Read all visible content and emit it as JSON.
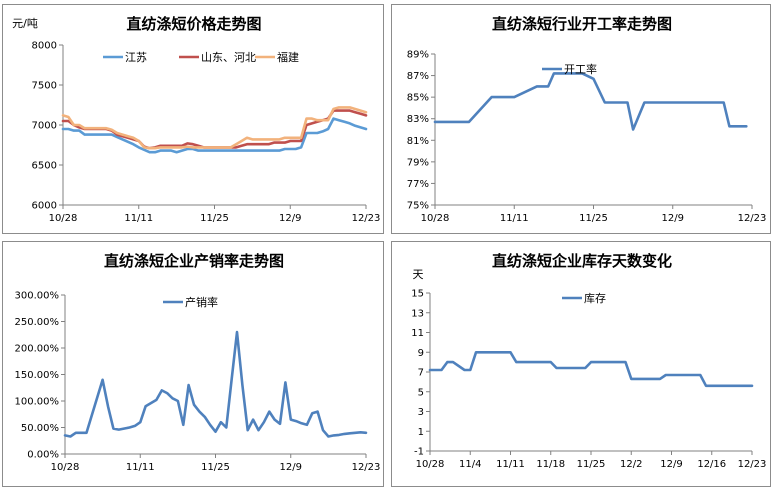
{
  "charts": [
    {
      "id": "p1",
      "type": "line",
      "title": "直纺涤短价格走势图",
      "ylabel": "元/吨",
      "ylim": [
        6000,
        8000
      ],
      "yticks": [
        "6000",
        "6500",
        "7000",
        "7500",
        "8000"
      ],
      "xlabels": [
        "10/28",
        "11/11",
        "11/25",
        "12/9",
        "12/23"
      ],
      "xmax": 56,
      "legend": [
        "江苏",
        "山东、河北",
        "福建"
      ],
      "series": [
        {
          "name": "江苏",
          "color": "#5b9bd5",
          "x": [
            0,
            1,
            2,
            3,
            4,
            5,
            6,
            7,
            8,
            9,
            10,
            11,
            12,
            13,
            14,
            15,
            16,
            17,
            18,
            19,
            20,
            21,
            22,
            23,
            24,
            25,
            26,
            27,
            28,
            29,
            30,
            31,
            32,
            33,
            34,
            35,
            36,
            37,
            38,
            39,
            40,
            41,
            42,
            43,
            44,
            45,
            46,
            47,
            48,
            49,
            50,
            51,
            52,
            53,
            54,
            55,
            56
          ],
          "y": [
            6950,
            6950,
            6930,
            6930,
            6880,
            6880,
            6880,
            6880,
            6880,
            6880,
            6850,
            6820,
            6790,
            6760,
            6720,
            6690,
            6660,
            6660,
            6680,
            6680,
            6680,
            6660,
            6680,
            6700,
            6700,
            6680,
            6680,
            6680,
            6680,
            6680,
            6680,
            6680,
            6680,
            6680,
            6680,
            6680,
            6680,
            6680,
            6680,
            6680,
            6680,
            6700,
            6700,
            6700,
            6720,
            6900,
            6900,
            6900,
            6920,
            6950,
            7080,
            7060,
            7040,
            7020,
            6990,
            6970,
            6950
          ]
        },
        {
          "name": "山东、河北",
          "color": "#c0504d",
          "x": [
            0,
            1,
            2,
            3,
            4,
            5,
            6,
            7,
            8,
            9,
            10,
            11,
            12,
            13,
            14,
            15,
            16,
            17,
            18,
            19,
            20,
            21,
            22,
            23,
            24,
            25,
            26,
            27,
            28,
            29,
            30,
            31,
            32,
            33,
            34,
            35,
            36,
            37,
            38,
            39,
            40,
            41,
            42,
            43,
            44,
            45,
            46,
            47,
            48,
            49,
            50,
            51,
            52,
            53,
            54,
            55,
            56
          ],
          "y": [
            7050,
            7050,
            7000,
            6970,
            6950,
            6950,
            6950,
            6950,
            6950,
            6930,
            6880,
            6860,
            6840,
            6820,
            6800,
            6730,
            6710,
            6720,
            6740,
            6740,
            6740,
            6740,
            6740,
            6770,
            6760,
            6740,
            6720,
            6720,
            6720,
            6720,
            6720,
            6720,
            6720,
            6740,
            6760,
            6760,
            6760,
            6760,
            6760,
            6780,
            6780,
            6780,
            6800,
            6800,
            6800,
            7000,
            7020,
            7040,
            7060,
            7080,
            7180,
            7180,
            7180,
            7180,
            7160,
            7140,
            7120
          ]
        },
        {
          "name": "福建",
          "color": "#f2b27c",
          "x": [
            0,
            1,
            2,
            3,
            4,
            5,
            6,
            7,
            8,
            9,
            10,
            11,
            12,
            13,
            14,
            15,
            16,
            17,
            18,
            19,
            20,
            21,
            22,
            23,
            24,
            25,
            26,
            27,
            28,
            29,
            30,
            31,
            32,
            33,
            34,
            35,
            36,
            37,
            38,
            39,
            40,
            41,
            42,
            43,
            44,
            45,
            46,
            47,
            48,
            49,
            50,
            51,
            52,
            53,
            54,
            55,
            56
          ],
          "y": [
            7120,
            7100,
            7000,
            7000,
            6960,
            6960,
            6960,
            6960,
            6960,
            6940,
            6900,
            6880,
            6860,
            6840,
            6800,
            6720,
            6710,
            6710,
            6720,
            6720,
            6720,
            6720,
            6720,
            6730,
            6720,
            6720,
            6720,
            6720,
            6720,
            6720,
            6720,
            6720,
            6760,
            6800,
            6840,
            6820,
            6820,
            6820,
            6820,
            6820,
            6820,
            6840,
            6840,
            6840,
            6840,
            7080,
            7080,
            7060,
            7060,
            7060,
            7200,
            7220,
            7220,
            7220,
            7200,
            7180,
            7160
          ]
        }
      ]
    },
    {
      "id": "p2",
      "type": "line",
      "title": "直纺涤短行业开工率走势图",
      "ylabel": "",
      "ylim": [
        75,
        89
      ],
      "yticks": [
        "75%",
        "77%",
        "79%",
        "81%",
        "83%",
        "85%",
        "87%",
        "89%"
      ],
      "xlabels": [
        "10/28",
        "11/11",
        "11/25",
        "12/9",
        "12/23"
      ],
      "xmax": 56,
      "legend": [
        "开工率"
      ],
      "series": [
        {
          "name": "开工率",
          "color": "#4f81bd",
          "x": [
            0,
            6,
            10,
            14,
            18,
            20,
            21,
            26,
            28,
            30,
            34,
            35,
            37,
            40,
            51,
            52,
            55
          ],
          "y": [
            82.7,
            82.7,
            85,
            85,
            86,
            86,
            87.2,
            87.2,
            86.7,
            84.5,
            84.5,
            82,
            84.5,
            84.5,
            84.5,
            82.3,
            82.3
          ]
        }
      ]
    },
    {
      "id": "p3",
      "type": "line",
      "title": "直纺涤短企业产销率走势图",
      "ylabel": "",
      "ylim": [
        0,
        300
      ],
      "yticks": [
        "0.00%",
        "50.00%",
        "100.00%",
        "150.00%",
        "200.00%",
        "250.00%",
        "300.00%"
      ],
      "xlabels": [
        "10/28",
        "11/11",
        "11/25",
        "12/9",
        "12/23"
      ],
      "xmax": 56,
      "legend": [
        "产销率"
      ],
      "series": [
        {
          "name": "产销率",
          "color": "#4f81bd",
          "x": [
            0,
            1,
            2,
            4,
            7,
            8,
            9,
            10,
            12,
            13,
            14,
            15,
            17,
            18,
            19,
            20,
            21,
            22,
            23,
            24,
            25,
            26,
            27,
            28,
            29,
            30,
            31,
            32,
            33,
            34,
            35,
            36,
            37,
            38,
            39,
            40,
            41,
            42,
            43,
            44,
            45,
            46,
            47,
            48,
            49,
            50,
            51,
            52,
            53,
            54,
            55,
            56
          ],
          "y": [
            35,
            33,
            40,
            40,
            140,
            90,
            48,
            46,
            50,
            53,
            60,
            90,
            102,
            120,
            115,
            105,
            100,
            55,
            130,
            93,
            80,
            70,
            55,
            42,
            60,
            50,
            140,
            230,
            130,
            45,
            65,
            45,
            60,
            80,
            65,
            57,
            135,
            65,
            62,
            58,
            55,
            77,
            80,
            45,
            33,
            35,
            36,
            38,
            39,
            40,
            41,
            40
          ]
        }
      ]
    },
    {
      "id": "p4",
      "type": "line",
      "title": "直纺涤短企业库存天数变化",
      "ylabel": "天",
      "ylim": [
        -1,
        15
      ],
      "yticks": [
        "-1",
        "1",
        "3",
        "5",
        "7",
        "9",
        "11",
        "13",
        "15"
      ],
      "xlabels": [
        "10/28",
        "11/4",
        "11/11",
        "11/18",
        "11/25",
        "12/2",
        "12/9",
        "12/16",
        "12/23"
      ],
      "xmax": 56,
      "legend": [
        "库存"
      ],
      "series": [
        {
          "name": "库存",
          "color": "#4f81bd",
          "x": [
            0,
            2,
            3,
            4,
            6,
            7,
            8,
            14,
            15,
            21,
            22,
            27,
            28,
            34,
            35,
            40,
            41,
            47,
            48,
            52,
            53,
            56
          ],
          "y": [
            7.2,
            7.2,
            8,
            8,
            7.2,
            7.2,
            9,
            9,
            8,
            8,
            7.4,
            7.4,
            8,
            8,
            6.3,
            6.3,
            6.7,
            6.7,
            5.6,
            5.6,
            5.6,
            5.6
          ]
        }
      ]
    }
  ]
}
